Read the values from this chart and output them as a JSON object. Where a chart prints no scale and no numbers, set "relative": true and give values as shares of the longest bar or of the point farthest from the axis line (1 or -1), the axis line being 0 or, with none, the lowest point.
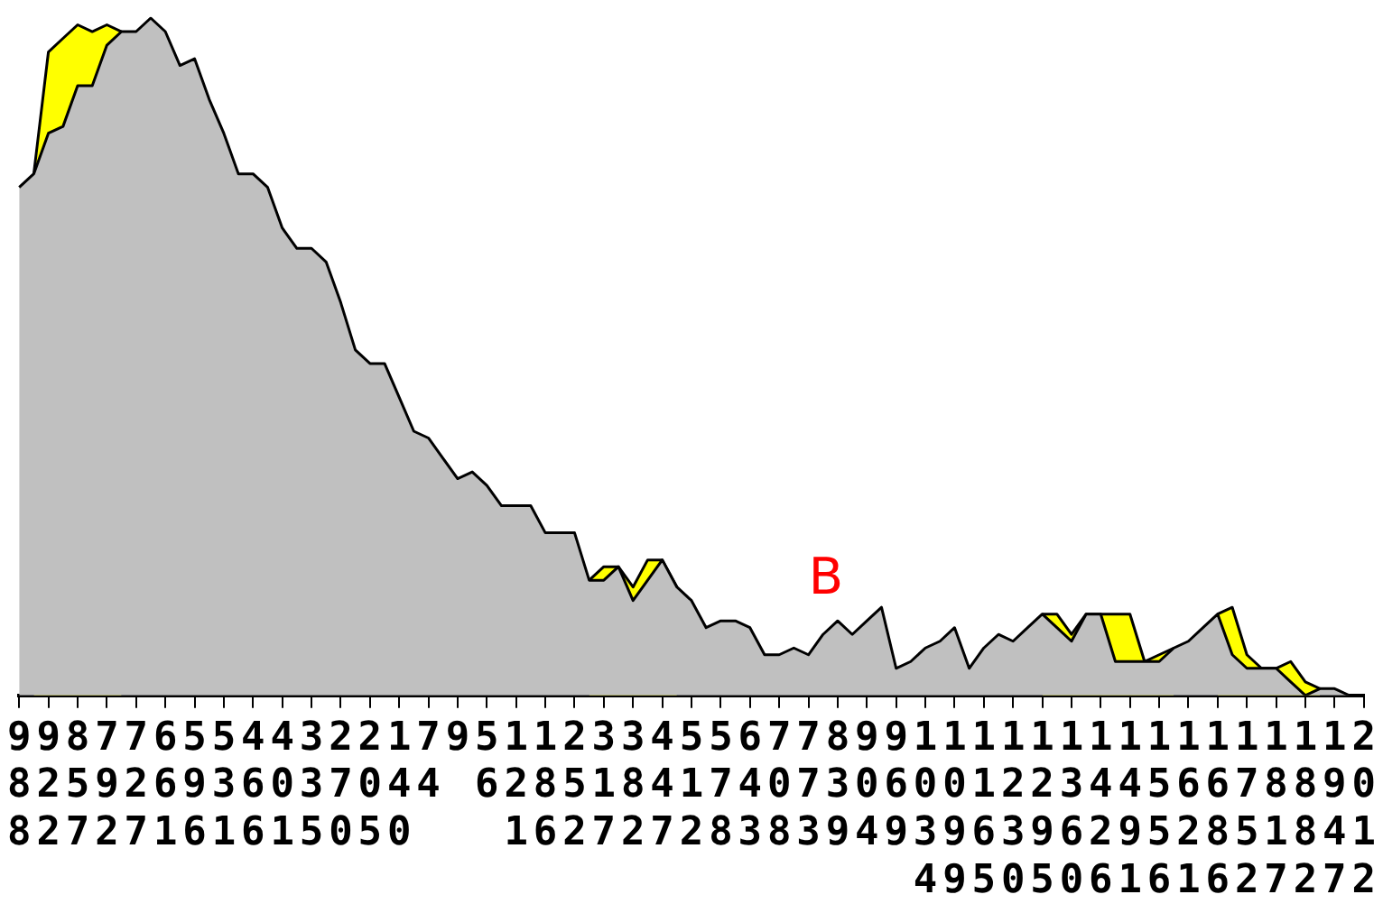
{
  "chart_data": {
    "type": "area",
    "relative": true,
    "legend": false,
    "categories": [
      "988",
      null,
      "922",
      null,
      "857",
      null,
      "792",
      null,
      "727",
      null,
      "661",
      null,
      "596",
      null,
      "531",
      null,
      "466",
      null,
      "401",
      null,
      "335",
      null,
      "270",
      null,
      "205",
      null,
      "140",
      null,
      "74",
      null,
      "9",
      null,
      "56",
      null,
      "121",
      null,
      "186",
      null,
      "252",
      null,
      "317",
      null,
      "382",
      null,
      "447",
      null,
      "512",
      null,
      "578",
      null,
      "643",
      null,
      "708",
      null,
      "773",
      null,
      "839",
      null,
      "904",
      null,
      "969",
      null,
      "1034",
      null,
      "1099",
      null,
      "1165",
      null,
      "1230",
      null,
      "1295",
      null,
      "1360",
      null,
      "1426",
      null,
      "1491",
      null,
      "1556",
      null,
      "1621",
      null,
      "1686",
      null,
      "1752",
      null,
      "1817",
      null,
      "1882",
      null,
      "1947",
      null,
      "2012"
    ],
    "series": [
      {
        "color": "#c0c0c0",
        "values": [
          0.75,
          0.77,
          0.83,
          0.84,
          0.9,
          0.9,
          0.96,
          0.98,
          0.98,
          1.0,
          0.98,
          0.93,
          0.94,
          0.88,
          0.83,
          0.77,
          0.77,
          0.75,
          0.69,
          0.66,
          0.66,
          0.64,
          0.58,
          0.51,
          0.49,
          0.49,
          0.44,
          0.39,
          0.38,
          0.35,
          0.32,
          0.33,
          0.31,
          0.28,
          0.28,
          0.28,
          0.24,
          0.24,
          0.24,
          0.17,
          0.17,
          0.19,
          0.14,
          0.17,
          0.2,
          0.16,
          0.14,
          0.1,
          0.11,
          0.11,
          0.1,
          0.06,
          0.06,
          0.07,
          0.06,
          0.09,
          0.11,
          0.09,
          0.11,
          0.13,
          0.04,
          0.05,
          0.07,
          0.08,
          0.1,
          0.04,
          0.07,
          0.09,
          0.08,
          0.1,
          0.12,
          0.1,
          0.08,
          0.12,
          0.12,
          0.05,
          0.05,
          0.05,
          0.05,
          0.07,
          0.08,
          0.1,
          0.12,
          0.06,
          0.04,
          0.04,
          0.04,
          0.02,
          0.0,
          0.01,
          0.01,
          0.0,
          0.0
        ]
      },
      {
        "color": "#ffff00",
        "values": [
          null,
          0.77,
          0.95,
          0.97,
          0.99,
          0.98,
          0.99,
          0.98,
          null,
          null,
          null,
          null,
          null,
          null,
          null,
          null,
          null,
          null,
          null,
          null,
          null,
          null,
          null,
          null,
          null,
          null,
          null,
          null,
          null,
          null,
          null,
          null,
          null,
          null,
          null,
          null,
          null,
          null,
          null,
          0.17,
          0.19,
          0.19,
          0.16,
          0.2,
          0.2,
          0.16,
          null,
          null,
          null,
          null,
          null,
          null,
          null,
          null,
          null,
          null,
          null,
          null,
          null,
          null,
          null,
          null,
          null,
          null,
          null,
          null,
          null,
          null,
          null,
          null,
          0.12,
          0.12,
          0.09,
          0.12,
          0.12,
          0.12,
          0.12,
          0.05,
          0.06,
          0.07,
          null,
          null,
          0.12,
          0.13,
          0.06,
          0.04,
          0.04,
          0.05,
          0.02,
          0.01,
          null,
          null,
          null
        ]
      }
    ],
    "annotations": [
      "B"
    ]
  }
}
